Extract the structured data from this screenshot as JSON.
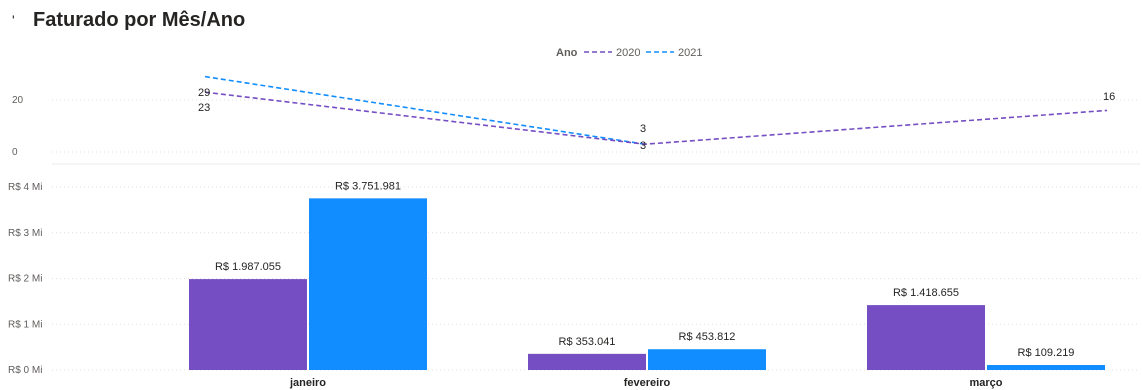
{
  "header": {
    "mark": "'",
    "title": "Faturado por Mês/Ano"
  },
  "chart_data": [
    {
      "type": "line",
      "categories": [
        "janeiro",
        "fevereiro",
        "março"
      ],
      "legend": {
        "title": "Ano",
        "position": "top-center"
      },
      "yticks": [
        0,
        20
      ],
      "ylim": [
        0,
        30
      ],
      "grid": true,
      "series": [
        {
          "name": "2020",
          "color": "#744EC2",
          "values": [
            23,
            3,
            16
          ],
          "labels": [
            "23",
            "3",
            "16"
          ]
        },
        {
          "name": "2021",
          "color": "#118DFF",
          "values": [
            29,
            3,
            null
          ],
          "labels": [
            "29",
            "3",
            ""
          ]
        }
      ]
    },
    {
      "type": "bar",
      "categories": [
        "janeiro",
        "fevereiro",
        "março"
      ],
      "ylim": [
        0,
        4000000
      ],
      "ytick_values": [
        0,
        1000000,
        2000000,
        3000000,
        4000000
      ],
      "yticks": [
        "R$ 0 Mi",
        "R$ 1 Mi",
        "R$ 2 Mi",
        "R$ 3 Mi",
        "R$ 4 Mi"
      ],
      "grid": true,
      "series": [
        {
          "name": "2020",
          "color": "#744EC2",
          "values": [
            1987055,
            353041,
            1418655
          ],
          "labels": [
            "R$ 1.987.055",
            "R$ 353.041",
            "R$ 1.418.655"
          ]
        },
        {
          "name": "2021",
          "color": "#118DFF",
          "values": [
            3751981,
            453812,
            109219
          ],
          "labels": [
            "R$ 3.751.981",
            "R$ 453.812",
            "R$ 109.219"
          ]
        }
      ]
    }
  ]
}
